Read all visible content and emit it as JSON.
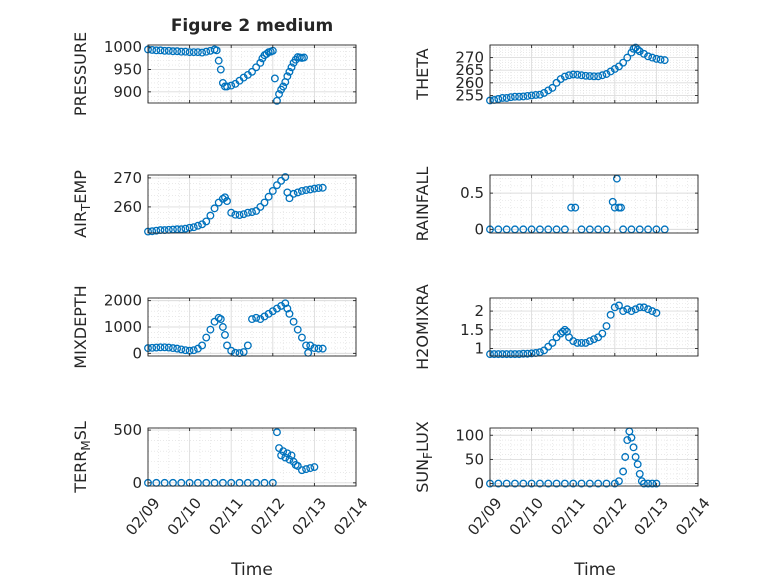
{
  "figure": {
    "title": "Figure 2 medium",
    "xlabel": "Time"
  },
  "style": {
    "marker_color": "#0072BD",
    "axis_color": "#262626",
    "grid_color": "#dcdcdc"
  },
  "chart_data": [
    {
      "id": "pressure",
      "type": "scatter",
      "ylabel": "PRESSURE",
      "ylim": [
        875,
        1005
      ],
      "yticks": [
        900,
        950,
        1000
      ],
      "xlim": [
        0,
        5
      ],
      "xtick_labels": [
        "02/09",
        "02/10",
        "02/11",
        "02/12",
        "02/13",
        "02/14"
      ],
      "show_xtick_labels": false,
      "grid": true,
      "points": [
        [
          0.0,
          995
        ],
        [
          0.1,
          994
        ],
        [
          0.2,
          993
        ],
        [
          0.3,
          993
        ],
        [
          0.4,
          992
        ],
        [
          0.5,
          992
        ],
        [
          0.6,
          991
        ],
        [
          0.7,
          991
        ],
        [
          0.8,
          990
        ],
        [
          0.9,
          990
        ],
        [
          1.0,
          989
        ],
        [
          1.1,
          989
        ],
        [
          1.2,
          989
        ],
        [
          1.3,
          988
        ],
        [
          1.4,
          990
        ],
        [
          1.5,
          992
        ],
        [
          1.6,
          995
        ],
        [
          1.65,
          993
        ],
        [
          1.7,
          970
        ],
        [
          1.75,
          950
        ],
        [
          1.8,
          920
        ],
        [
          1.85,
          912
        ],
        [
          1.9,
          912
        ],
        [
          2.0,
          914
        ],
        [
          2.1,
          918
        ],
        [
          2.2,
          925
        ],
        [
          2.3,
          932
        ],
        [
          2.4,
          938
        ],
        [
          2.5,
          945
        ],
        [
          2.6,
          955
        ],
        [
          2.7,
          965
        ],
        [
          2.75,
          975
        ],
        [
          2.8,
          982
        ],
        [
          2.85,
          985
        ],
        [
          2.9,
          989
        ],
        [
          2.95,
          990
        ],
        [
          3.0,
          992
        ],
        [
          3.05,
          930
        ],
        [
          3.1,
          880
        ],
        [
          3.15,
          895
        ],
        [
          3.2,
          905
        ],
        [
          3.25,
          912
        ],
        [
          3.3,
          922
        ],
        [
          3.35,
          935
        ],
        [
          3.4,
          945
        ],
        [
          3.45,
          955
        ],
        [
          3.5,
          965
        ],
        [
          3.55,
          972
        ],
        [
          3.6,
          978
        ],
        [
          3.65,
          977
        ],
        [
          3.7,
          976
        ],
        [
          3.75,
          977
        ]
      ]
    },
    {
      "id": "theta",
      "type": "scatter",
      "ylabel": "THETA",
      "ylim": [
        252,
        275
      ],
      "yticks": [
        255,
        260,
        265,
        270
      ],
      "xlim": [
        0,
        5
      ],
      "xtick_labels": [
        "02/09",
        "02/10",
        "02/11",
        "02/12",
        "02/13",
        "02/14"
      ],
      "show_xtick_labels": false,
      "grid": true,
      "points": [
        [
          0.0,
          253
        ],
        [
          0.1,
          253.2
        ],
        [
          0.2,
          253.6
        ],
        [
          0.3,
          254
        ],
        [
          0.4,
          254
        ],
        [
          0.5,
          254.3
        ],
        [
          0.6,
          254.5
        ],
        [
          0.7,
          254.5
        ],
        [
          0.8,
          254.6
        ],
        [
          0.9,
          254.8
        ],
        [
          1.0,
          255
        ],
        [
          1.1,
          255.2
        ],
        [
          1.2,
          255.3
        ],
        [
          1.3,
          256
        ],
        [
          1.4,
          257
        ],
        [
          1.5,
          258
        ],
        [
          1.6,
          260
        ],
        [
          1.7,
          261.5
        ],
        [
          1.8,
          262.5
        ],
        [
          1.9,
          263
        ],
        [
          2.0,
          263.3
        ],
        [
          2.1,
          263.2
        ],
        [
          2.2,
          263
        ],
        [
          2.3,
          262.8
        ],
        [
          2.4,
          262.7
        ],
        [
          2.5,
          262.6
        ],
        [
          2.6,
          262.6
        ],
        [
          2.7,
          263
        ],
        [
          2.8,
          263.5
        ],
        [
          2.9,
          264.5
        ],
        [
          3.0,
          265.5
        ],
        [
          3.1,
          266.5
        ],
        [
          3.2,
          268
        ],
        [
          3.3,
          270
        ],
        [
          3.4,
          272
        ],
        [
          3.45,
          273.5
        ],
        [
          3.5,
          274
        ],
        [
          3.55,
          273.2
        ],
        [
          3.6,
          272.5
        ],
        [
          3.7,
          271.5
        ],
        [
          3.8,
          270.5
        ],
        [
          3.9,
          270
        ],
        [
          4.0,
          269.5
        ],
        [
          4.1,
          269.2
        ],
        [
          4.2,
          269
        ]
      ]
    },
    {
      "id": "air_temp",
      "type": "scatter",
      "ylabel": "AIR_TEMP",
      "ylim": [
        251,
        271
      ],
      "yticks": [
        260,
        270
      ],
      "xlim": [
        0,
        5
      ],
      "xtick_labels": [
        "02/09",
        "02/10",
        "02/11",
        "02/12",
        "02/13",
        "02/14"
      ],
      "show_xtick_labels": false,
      "grid": true,
      "points": [
        [
          0.0,
          251.5
        ],
        [
          0.1,
          251.6
        ],
        [
          0.2,
          251.8
        ],
        [
          0.3,
          252
        ],
        [
          0.4,
          252
        ],
        [
          0.5,
          252.1
        ],
        [
          0.6,
          252.2
        ],
        [
          0.7,
          252.3
        ],
        [
          0.8,
          252.3
        ],
        [
          0.9,
          252.5
        ],
        [
          1.0,
          252.8
        ],
        [
          1.1,
          253
        ],
        [
          1.2,
          253.5
        ],
        [
          1.3,
          254
        ],
        [
          1.4,
          255
        ],
        [
          1.5,
          257
        ],
        [
          1.6,
          259.5
        ],
        [
          1.7,
          261.5
        ],
        [
          1.8,
          262.8
        ],
        [
          1.85,
          263.3
        ],
        [
          1.9,
          262
        ],
        [
          2.0,
          258
        ],
        [
          2.1,
          257.3
        ],
        [
          2.2,
          257.2
        ],
        [
          2.3,
          257.5
        ],
        [
          2.4,
          258
        ],
        [
          2.5,
          258.2
        ],
        [
          2.6,
          258.6
        ],
        [
          2.7,
          260
        ],
        [
          2.8,
          261.5
        ],
        [
          2.9,
          263.5
        ],
        [
          3.0,
          265.5
        ],
        [
          3.1,
          267.5
        ],
        [
          3.2,
          269
        ],
        [
          3.3,
          270.3
        ],
        [
          3.35,
          265
        ],
        [
          3.4,
          263
        ],
        [
          3.5,
          264.5
        ],
        [
          3.6,
          265
        ],
        [
          3.7,
          265.5
        ],
        [
          3.8,
          265.8
        ],
        [
          3.9,
          266
        ],
        [
          4.0,
          266.3
        ],
        [
          4.1,
          266.5
        ],
        [
          4.2,
          266.6
        ]
      ]
    },
    {
      "id": "rainfall",
      "type": "scatter",
      "ylabel": "RAINFALL",
      "ylim": [
        -0.05,
        0.75
      ],
      "yticks": [
        0,
        0.5
      ],
      "xlim": [
        0,
        5
      ],
      "xtick_labels": [
        "02/09",
        "02/10",
        "02/11",
        "02/12",
        "02/13",
        "02/14"
      ],
      "show_xtick_labels": false,
      "grid": true,
      "points": [
        [
          0.0,
          0
        ],
        [
          0.2,
          0
        ],
        [
          0.4,
          0
        ],
        [
          0.6,
          0
        ],
        [
          0.8,
          0
        ],
        [
          1.0,
          0
        ],
        [
          1.2,
          0
        ],
        [
          1.4,
          0
        ],
        [
          1.6,
          0
        ],
        [
          1.8,
          0
        ],
        [
          1.95,
          0.3
        ],
        [
          2.05,
          0.3
        ],
        [
          2.2,
          0
        ],
        [
          2.4,
          0
        ],
        [
          2.6,
          0
        ],
        [
          2.8,
          0
        ],
        [
          2.95,
          0.38
        ],
        [
          3.0,
          0.3
        ],
        [
          3.05,
          0.7
        ],
        [
          3.1,
          0.3
        ],
        [
          3.15,
          0.3
        ],
        [
          3.2,
          0
        ],
        [
          3.4,
          0
        ],
        [
          3.6,
          0
        ],
        [
          3.8,
          0
        ],
        [
          4.0,
          0
        ],
        [
          4.2,
          0
        ]
      ]
    },
    {
      "id": "mixdepth",
      "type": "scatter",
      "ylabel": "MIXDEPTH",
      "ylim": [
        -100,
        2100
      ],
      "yticks": [
        0,
        1000,
        2000
      ],
      "xlim": [
        0,
        5
      ],
      "xtick_labels": [
        "02/09",
        "02/10",
        "02/11",
        "02/12",
        "02/13",
        "02/14"
      ],
      "show_xtick_labels": false,
      "grid": true,
      "points": [
        [
          0.0,
          200
        ],
        [
          0.1,
          210
        ],
        [
          0.2,
          220
        ],
        [
          0.3,
          230
        ],
        [
          0.4,
          230
        ],
        [
          0.5,
          220
        ],
        [
          0.6,
          200
        ],
        [
          0.7,
          180
        ],
        [
          0.8,
          150
        ],
        [
          0.9,
          120
        ],
        [
          1.0,
          100
        ],
        [
          1.1,
          120
        ],
        [
          1.2,
          180
        ],
        [
          1.3,
          300
        ],
        [
          1.4,
          600
        ],
        [
          1.5,
          900
        ],
        [
          1.6,
          1200
        ],
        [
          1.7,
          1350
        ],
        [
          1.75,
          1300
        ],
        [
          1.8,
          1000
        ],
        [
          1.85,
          700
        ],
        [
          1.9,
          300
        ],
        [
          2.0,
          100
        ],
        [
          2.1,
          20
        ],
        [
          2.2,
          10
        ],
        [
          2.3,
          50
        ],
        [
          2.4,
          300
        ],
        [
          2.5,
          1300
        ],
        [
          2.6,
          1350
        ],
        [
          2.7,
          1300
        ],
        [
          2.8,
          1400
        ],
        [
          2.9,
          1500
        ],
        [
          3.0,
          1600
        ],
        [
          3.1,
          1700
        ],
        [
          3.2,
          1800
        ],
        [
          3.3,
          1900
        ],
        [
          3.35,
          1700
        ],
        [
          3.4,
          1500
        ],
        [
          3.5,
          1200
        ],
        [
          3.6,
          900
        ],
        [
          3.7,
          600
        ],
        [
          3.8,
          300
        ],
        [
          3.85,
          20
        ],
        [
          3.9,
          300
        ],
        [
          4.0,
          200
        ],
        [
          4.1,
          180
        ],
        [
          4.2,
          180
        ]
      ]
    },
    {
      "id": "h2omixra",
      "type": "scatter",
      "ylabel": "H2OMIXRA",
      "ylim": [
        0.8,
        2.35
      ],
      "yticks": [
        1,
        1.5,
        2
      ],
      "xlim": [
        0,
        5
      ],
      "xtick_labels": [
        "02/09",
        "02/10",
        "02/11",
        "02/12",
        "02/13",
        "02/14"
      ],
      "show_xtick_labels": false,
      "grid": true,
      "points": [
        [
          0.0,
          0.85
        ],
        [
          0.1,
          0.85
        ],
        [
          0.2,
          0.85
        ],
        [
          0.3,
          0.85
        ],
        [
          0.4,
          0.85
        ],
        [
          0.5,
          0.85
        ],
        [
          0.6,
          0.85
        ],
        [
          0.7,
          0.85
        ],
        [
          0.8,
          0.86
        ],
        [
          0.9,
          0.86
        ],
        [
          1.0,
          0.87
        ],
        [
          1.1,
          0.88
        ],
        [
          1.2,
          0.9
        ],
        [
          1.3,
          0.95
        ],
        [
          1.4,
          1.05
        ],
        [
          1.5,
          1.15
        ],
        [
          1.6,
          1.3
        ],
        [
          1.7,
          1.4
        ],
        [
          1.75,
          1.45
        ],
        [
          1.8,
          1.5
        ],
        [
          1.85,
          1.45
        ],
        [
          1.9,
          1.3
        ],
        [
          2.0,
          1.2
        ],
        [
          2.1,
          1.15
        ],
        [
          2.2,
          1.15
        ],
        [
          2.3,
          1.15
        ],
        [
          2.4,
          1.2
        ],
        [
          2.5,
          1.25
        ],
        [
          2.6,
          1.3
        ],
        [
          2.7,
          1.4
        ],
        [
          2.8,
          1.6
        ],
        [
          2.9,
          1.9
        ],
        [
          3.0,
          2.1
        ],
        [
          3.1,
          2.15
        ],
        [
          3.2,
          2.0
        ],
        [
          3.3,
          2.05
        ],
        [
          3.4,
          2.0
        ],
        [
          3.5,
          2.05
        ],
        [
          3.6,
          2.1
        ],
        [
          3.7,
          2.1
        ],
        [
          3.8,
          2.05
        ],
        [
          3.9,
          2.0
        ],
        [
          4.0,
          1.95
        ]
      ]
    },
    {
      "id": "terr_msl",
      "type": "scatter",
      "ylabel": "TERR_MSL",
      "ylim": [
        -30,
        520
      ],
      "yticks": [
        0,
        500
      ],
      "xlim": [
        0,
        5
      ],
      "xtick_labels": [
        "02/09",
        "02/10",
        "02/11",
        "02/12",
        "02/13",
        "02/14"
      ],
      "show_xtick_labels": true,
      "grid": true,
      "points": [
        [
          0.0,
          0
        ],
        [
          0.2,
          0
        ],
        [
          0.4,
          0
        ],
        [
          0.6,
          0
        ],
        [
          0.8,
          0
        ],
        [
          1.0,
          0
        ],
        [
          1.2,
          0
        ],
        [
          1.4,
          0
        ],
        [
          1.6,
          0
        ],
        [
          1.8,
          0
        ],
        [
          2.0,
          0
        ],
        [
          2.2,
          0
        ],
        [
          2.4,
          0
        ],
        [
          2.6,
          0
        ],
        [
          2.8,
          0
        ],
        [
          3.0,
          0
        ],
        [
          3.1,
          480
        ],
        [
          3.15,
          330
        ],
        [
          3.2,
          260
        ],
        [
          3.25,
          300
        ],
        [
          3.3,
          240
        ],
        [
          3.35,
          280
        ],
        [
          3.4,
          220
        ],
        [
          3.45,
          260
        ],
        [
          3.5,
          200
        ],
        [
          3.55,
          170
        ],
        [
          3.6,
          160
        ],
        [
          3.7,
          120
        ],
        [
          3.8,
          130
        ],
        [
          3.9,
          140
        ],
        [
          4.0,
          150
        ]
      ]
    },
    {
      "id": "sun_flux",
      "type": "scatter",
      "ylabel": "SUN_FLUX",
      "ylim": [
        -5,
        115
      ],
      "yticks": [
        0,
        50,
        100
      ],
      "xlim": [
        0,
        5
      ],
      "xtick_labels": [
        "02/09",
        "02/10",
        "02/11",
        "02/12",
        "02/13",
        "02/14"
      ],
      "show_xtick_labels": true,
      "grid": true,
      "points": [
        [
          0.0,
          0
        ],
        [
          0.2,
          0
        ],
        [
          0.4,
          0
        ],
        [
          0.6,
          0
        ],
        [
          0.8,
          0
        ],
        [
          1.0,
          0
        ],
        [
          1.2,
          0
        ],
        [
          1.4,
          0
        ],
        [
          1.6,
          0
        ],
        [
          1.8,
          0
        ],
        [
          2.0,
          0
        ],
        [
          2.2,
          0
        ],
        [
          2.4,
          0
        ],
        [
          2.6,
          0
        ],
        [
          2.8,
          0
        ],
        [
          3.0,
          0
        ],
        [
          3.1,
          5
        ],
        [
          3.2,
          25
        ],
        [
          3.25,
          55
        ],
        [
          3.3,
          90
        ],
        [
          3.35,
          108
        ],
        [
          3.4,
          95
        ],
        [
          3.45,
          75
        ],
        [
          3.5,
          55
        ],
        [
          3.55,
          40
        ],
        [
          3.6,
          20
        ],
        [
          3.65,
          5
        ],
        [
          3.7,
          0
        ],
        [
          3.8,
          0
        ],
        [
          3.9,
          0
        ],
        [
          4.0,
          0
        ]
      ]
    }
  ]
}
